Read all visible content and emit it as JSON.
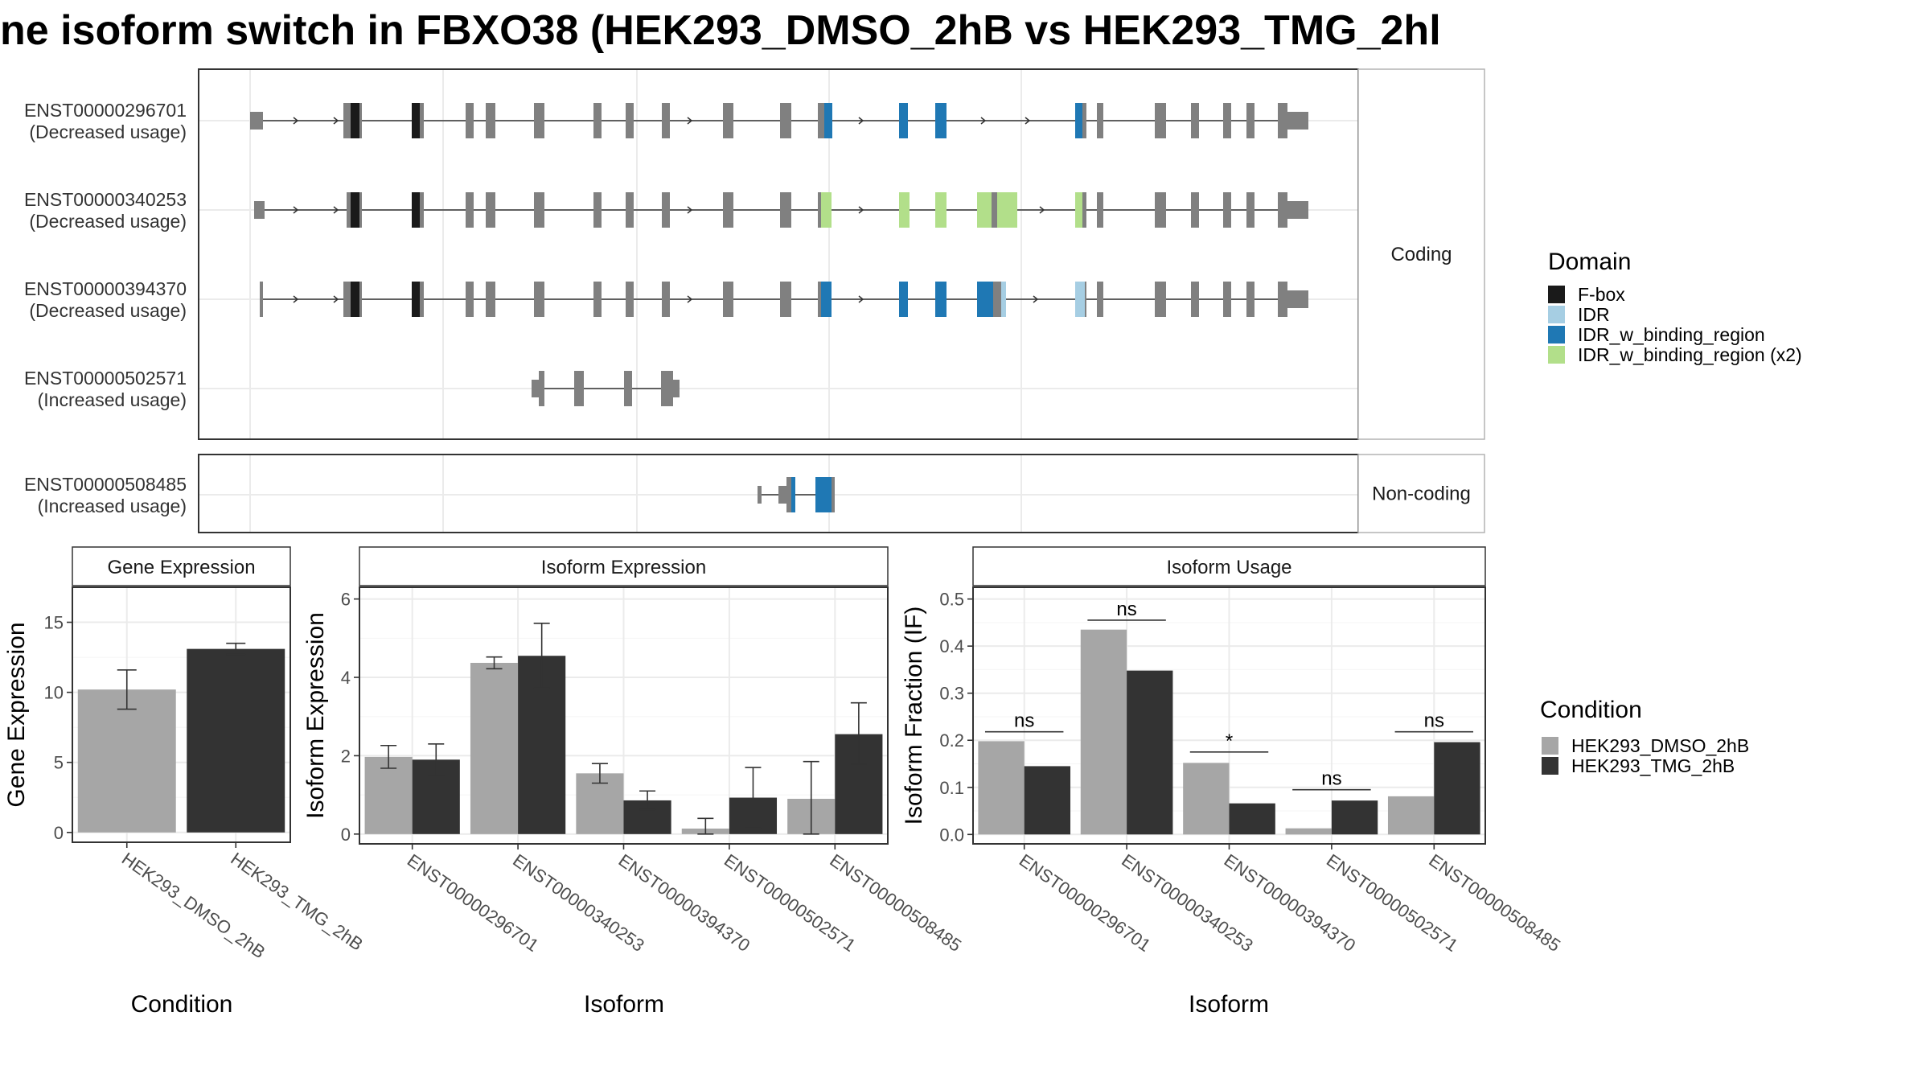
{
  "title": "ne isoform switch in FBXO38 (HEK293_DMSO_2hB vs HEK293_TMG_2hl",
  "colors": {
    "F-box": "#1a1a1a",
    "IDR": "#a6cee3",
    "IDR_w_binding_region": "#1f78b4",
    "IDR_w_binding_region (x2)": "#b2df8a",
    "exon": "#808080",
    "dmso": "#a6a6a6",
    "tmg": "#333333"
  },
  "structure": {
    "facets": {
      "coding": "Coding",
      "noncoding": "Non-coding"
    },
    "isoforms": [
      {
        "id": "ENST00000296701",
        "note": "(Decreased usage)",
        "facet": "coding"
      },
      {
        "id": "ENST00000340253",
        "note": "(Decreased usage)",
        "facet": "coding"
      },
      {
        "id": "ENST00000394370",
        "note": "(Decreased usage)",
        "facet": "coding"
      },
      {
        "id": "ENST00000502571",
        "note": "(Increased usage)",
        "facet": "coding"
      },
      {
        "id": "ENST00000508485",
        "note": "(Increased usage)",
        "facet": "noncoding"
      }
    ]
  },
  "legend_domain": {
    "title": "Domain",
    "items": [
      "F-box",
      "IDR",
      "IDR_w_binding_region",
      "IDR_w_binding_region (x2)"
    ]
  },
  "legend_condition": {
    "title": "Condition",
    "items": [
      "HEK293_DMSO_2hB",
      "HEK293_TMG_2hB"
    ]
  },
  "chart_data": [
    {
      "type": "bar",
      "title": "Gene Expression",
      "xlabel": "Condition",
      "ylabel": "Gene Expression",
      "categories": [
        "HEK293_DMSO_2hB",
        "HEK293_TMG_2hB"
      ],
      "values": [
        10.2,
        13.1
      ],
      "error_low": [
        8.8,
        12.7
      ],
      "error_high": [
        11.6,
        13.5
      ],
      "ylim": [
        -0.7,
        17.5
      ],
      "yticks": [
        0,
        5,
        10,
        15
      ]
    },
    {
      "type": "bar",
      "title": "Isoform Expression",
      "xlabel": "Isoform",
      "ylabel": "Isoform Expression",
      "categories": [
        "ENST00000296701",
        "ENST00000340253",
        "ENST00000394370",
        "ENST00000502571",
        "ENST00000508485"
      ],
      "series": [
        {
          "name": "HEK293_DMSO_2hB",
          "values": [
            1.97,
            4.37,
            1.55,
            0.14,
            0.9
          ],
          "error_low": [
            1.68,
            4.22,
            1.3,
            0.0,
            0.0
          ],
          "error_high": [
            2.26,
            4.52,
            1.8,
            0.4,
            1.85
          ]
        },
        {
          "name": "HEK293_TMG_2hB",
          "values": [
            1.9,
            4.55,
            0.86,
            0.93,
            2.55
          ],
          "error_low": [
            1.5,
            3.72,
            0.62,
            0.15,
            1.78
          ],
          "error_high": [
            2.3,
            5.38,
            1.1,
            1.7,
            3.35
          ]
        }
      ],
      "ylim": [
        -0.25,
        6.3
      ],
      "yticks": [
        0,
        2,
        4,
        6
      ]
    },
    {
      "type": "bar",
      "title": "Isoform Usage",
      "xlabel": "Isoform",
      "ylabel": "Isoform Fraction (IF)",
      "categories": [
        "ENST00000296701",
        "ENST00000340253",
        "ENST00000394370",
        "ENST00000502571",
        "ENST00000508485"
      ],
      "series": [
        {
          "name": "HEK293_DMSO_2hB",
          "values": [
            0.198,
            0.435,
            0.152,
            0.013,
            0.081
          ]
        },
        {
          "name": "HEK293_TMG_2hB",
          "values": [
            0.145,
            0.348,
            0.066,
            0.072,
            0.196
          ]
        }
      ],
      "significance": [
        "ns",
        "ns",
        "*",
        "ns",
        "ns"
      ],
      "sig_level": [
        0.218,
        0.455,
        0.175,
        0.095,
        0.218
      ],
      "ylim": [
        -0.02,
        0.525
      ],
      "yticks": [
        "0.0",
        "0.1",
        "0.2",
        "0.3",
        "0.4",
        "0.5"
      ]
    }
  ]
}
